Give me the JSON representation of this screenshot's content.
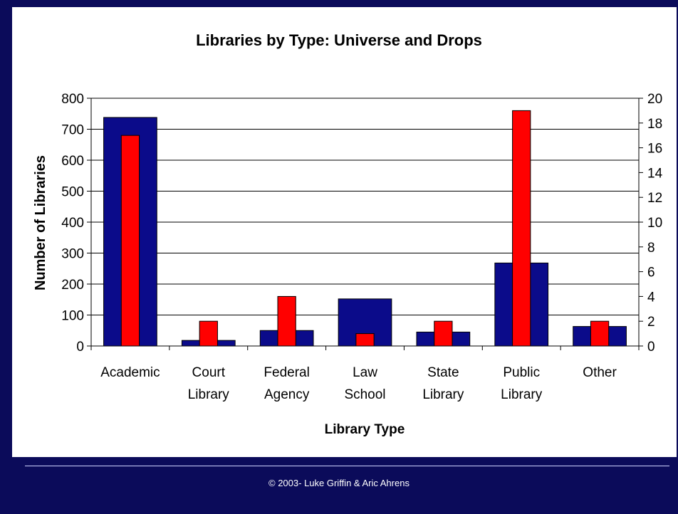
{
  "chart_data": {
    "type": "bar",
    "title": "Libraries by Type: Universe and Drops",
    "xlabel": "Library Type",
    "ylabel": "Number of Libraries",
    "categories": [
      [
        "Academic"
      ],
      [
        "Court",
        "Library"
      ],
      [
        "Federal",
        "Agency"
      ],
      [
        "Law",
        "School"
      ],
      [
        "State",
        "Library"
      ],
      [
        "Public",
        "Library"
      ],
      [
        "Other"
      ]
    ],
    "y_left": {
      "min": 0,
      "max": 800,
      "step": 100
    },
    "y_right": {
      "min": 0,
      "max": 20,
      "step": 2
    },
    "grid": true,
    "series": [
      {
        "axis": "left",
        "color": "#0b0b8a",
        "values": [
          738,
          18,
          50,
          152,
          45,
          268,
          63
        ]
      },
      {
        "axis": "right",
        "color": "#ff0000",
        "values": [
          17,
          2,
          4,
          1,
          2,
          19,
          2
        ]
      }
    ]
  },
  "footer": {
    "text": "© 2003- Luke Griffin & Aric Ahrens"
  }
}
